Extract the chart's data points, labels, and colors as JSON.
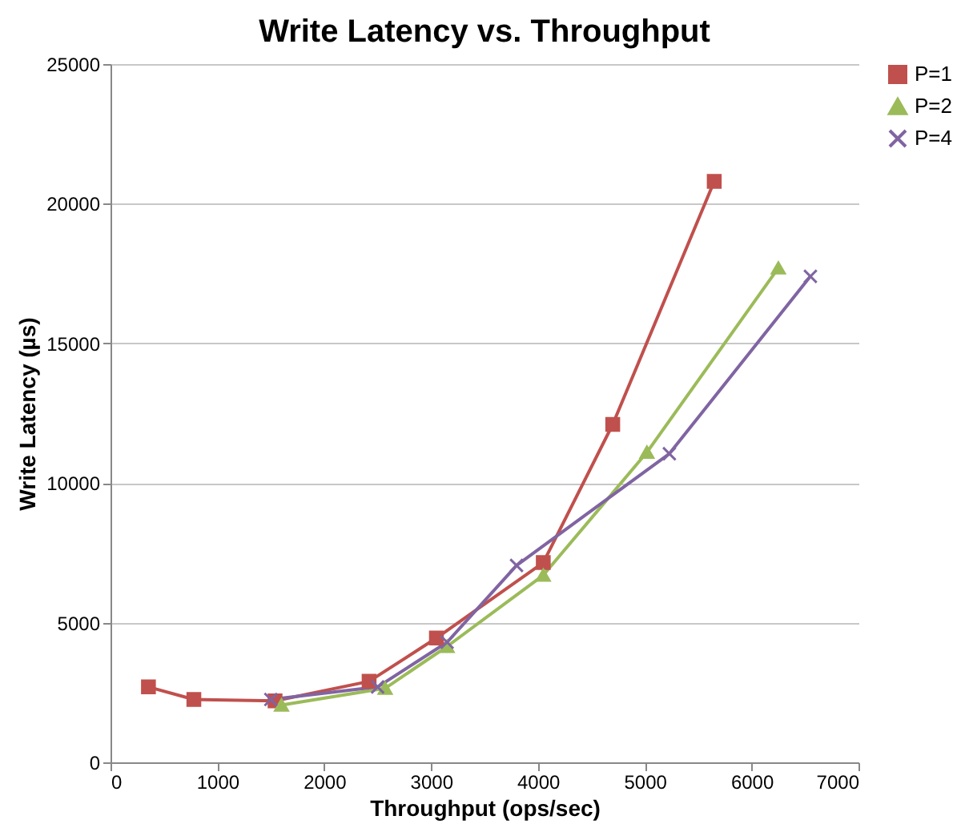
{
  "chart_data": {
    "type": "line",
    "title": "Write Latency vs. Throughput",
    "xlabel": "Throughput (ops/sec)",
    "ylabel": "Write Latency (µs)",
    "xlim": [
      0,
      7000
    ],
    "xticks": [
      0,
      1000,
      2000,
      3000,
      4000,
      5000,
      6000,
      7000
    ],
    "ylim": [
      0,
      25000
    ],
    "yticks": [
      0,
      5000,
      10000,
      15000,
      20000,
      25000
    ],
    "grid": "y",
    "legend": "right",
    "series": [
      {
        "name": "P=1",
        "color": "#c0504d",
        "marker": "square",
        "x": [
          355,
          780,
          1540,
          2420,
          3050,
          4050,
          4700,
          5650
        ],
        "values": [
          2700,
          2250,
          2200,
          2900,
          4450,
          7150,
          12100,
          20800
        ]
      },
      {
        "name": "P=2",
        "color": "#9bbb59",
        "marker": "triangle",
        "x": [
          1600,
          2570,
          3150,
          4050,
          5020,
          6250
        ],
        "values": [
          2050,
          2650,
          4150,
          6700,
          11100,
          17700
        ]
      },
      {
        "name": "P=4",
        "color": "#8064a2",
        "marker": "cross",
        "x": [
          1500,
          2500,
          3150,
          3800,
          5230,
          6550
        ],
        "values": [
          2250,
          2700,
          4300,
          7050,
          11050,
          17400
        ]
      }
    ]
  }
}
